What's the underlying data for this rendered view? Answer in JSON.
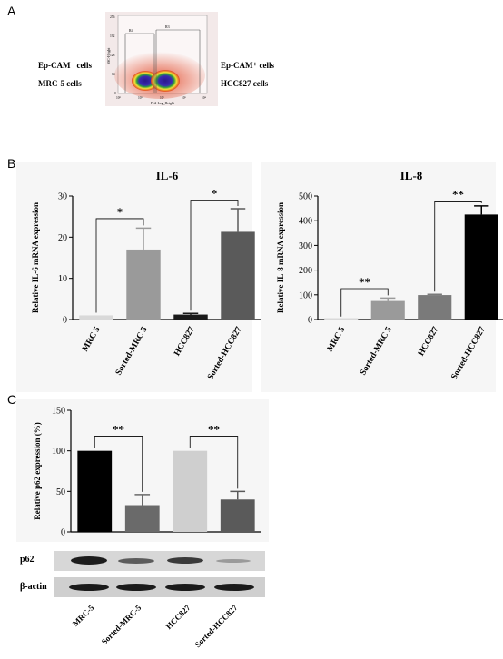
{
  "panels": {
    "a": "A",
    "b": "B",
    "c": "C"
  },
  "flow": {
    "left_top": "Ep-CAM⁻ cells",
    "left_bottom": "MRC-5 cells",
    "right_top": "Ep-CAM⁺ cells",
    "right_bottom": "HCC827 cells",
    "ylabel": "SSC-Height",
    "xlabel": "FL2-Log_Height",
    "gate_left": "R4",
    "gate_right": "R3",
    "yticks": [
      "256",
      "192",
      "128",
      "64",
      "0"
    ],
    "xticks": [
      "10⁰",
      "10¹",
      "10²",
      "10³",
      "10⁴"
    ]
  },
  "blot": {
    "row1": "p62",
    "row2": "β-actin"
  },
  "colors": {
    "mrc5": "#d9d9d9",
    "sorted_mrc5": "#9a9a9a",
    "hcc827": "#1a1a1a",
    "sorted_hcc827": "#5a5a5a"
  },
  "chart_data": [
    {
      "id": "il6",
      "type": "bar",
      "title": "IL-6",
      "ylabel": "Relative IL-6 mRNA expression",
      "categories": [
        "MRC 5",
        "Sorted-MRC 5",
        "HCC827",
        "Sorted-HCC827"
      ],
      "values": [
        1,
        17,
        1.2,
        21.3
      ],
      "errors": [
        0,
        5.2,
        0.3,
        5.6
      ],
      "bar_colors": [
        "#d9d9d9",
        "#9a9a9a",
        "#1a1a1a",
        "#5a5a5a"
      ],
      "ylim": [
        0,
        30
      ],
      "yticks": [
        0,
        10,
        20,
        30
      ],
      "significance": [
        {
          "from": 0,
          "to": 1,
          "label": "*",
          "y": 24.5
        },
        {
          "from": 2,
          "to": 3,
          "label": "*",
          "y": 29
        }
      ]
    },
    {
      "id": "il8",
      "type": "bar",
      "title": "IL-8",
      "ylabel": "Relative IL-8 mRNA expression",
      "categories": [
        "MRC 5",
        "Sorted-MRC 5",
        "HCC827",
        "Sorted-HCC827"
      ],
      "values": [
        1,
        75,
        99,
        425
      ],
      "errors": [
        0,
        12,
        3,
        35
      ],
      "bar_colors": [
        "#d9d9d9",
        "#9a9a9a",
        "#7a7a7a",
        "#000000"
      ],
      "ylim": [
        0,
        500
      ],
      "yticks": [
        0,
        100,
        200,
        300,
        400,
        500
      ],
      "significance": [
        {
          "from": 0,
          "to": 1,
          "label": "**",
          "y": 125
        },
        {
          "from": 2,
          "to": 3,
          "label": "**",
          "y": 480
        }
      ]
    },
    {
      "id": "p62",
      "type": "bar",
      "title": "",
      "ylabel": "Relative p62 expression (%)",
      "categories": [
        "MRC-5",
        "Sorted-MRC-5",
        "HCC827",
        "Sorted-HCC827"
      ],
      "values": [
        100,
        33,
        100,
        40
      ],
      "errors": [
        0,
        13,
        0,
        10
      ],
      "bar_colors": [
        "#000000",
        "#6a6a6a",
        "#cfcfcf",
        "#5a5a5a"
      ],
      "ylim": [
        0,
        150
      ],
      "yticks": [
        0,
        50,
        100,
        150
      ],
      "significance": [
        {
          "from": 0,
          "to": 1,
          "label": "**",
          "y": 118
        },
        {
          "from": 2,
          "to": 3,
          "label": "**",
          "y": 118
        }
      ]
    }
  ]
}
